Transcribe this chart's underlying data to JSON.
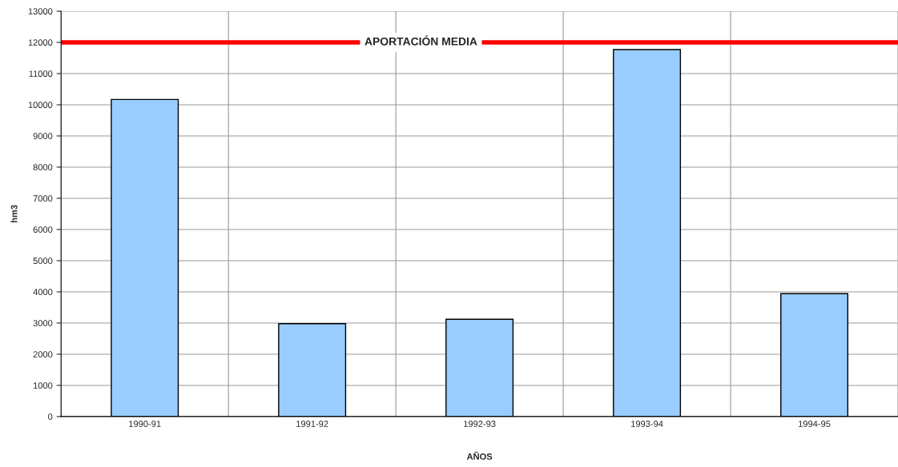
{
  "chart_data": {
    "type": "bar",
    "xlabel": "AÑOS",
    "ylabel": "hm3",
    "categories": [
      "1990-91",
      "1991-92",
      "1992-93",
      "1993-94",
      "1994-95"
    ],
    "values": [
      10170,
      2980,
      3120,
      11770,
      3940
    ],
    "color": "#99ccff",
    "ylim": [
      0,
      13000
    ],
    "yticks": [
      0,
      1000,
      2000,
      3000,
      4000,
      5000,
      6000,
      7000,
      8000,
      9000,
      10000,
      11000,
      12000,
      13000
    ],
    "grid": true,
    "legend": false,
    "ref_lines": [
      {
        "axis": "y",
        "value": 12000,
        "label": "APORTACIÓN MEDIA",
        "color": "#ff0000"
      }
    ]
  }
}
